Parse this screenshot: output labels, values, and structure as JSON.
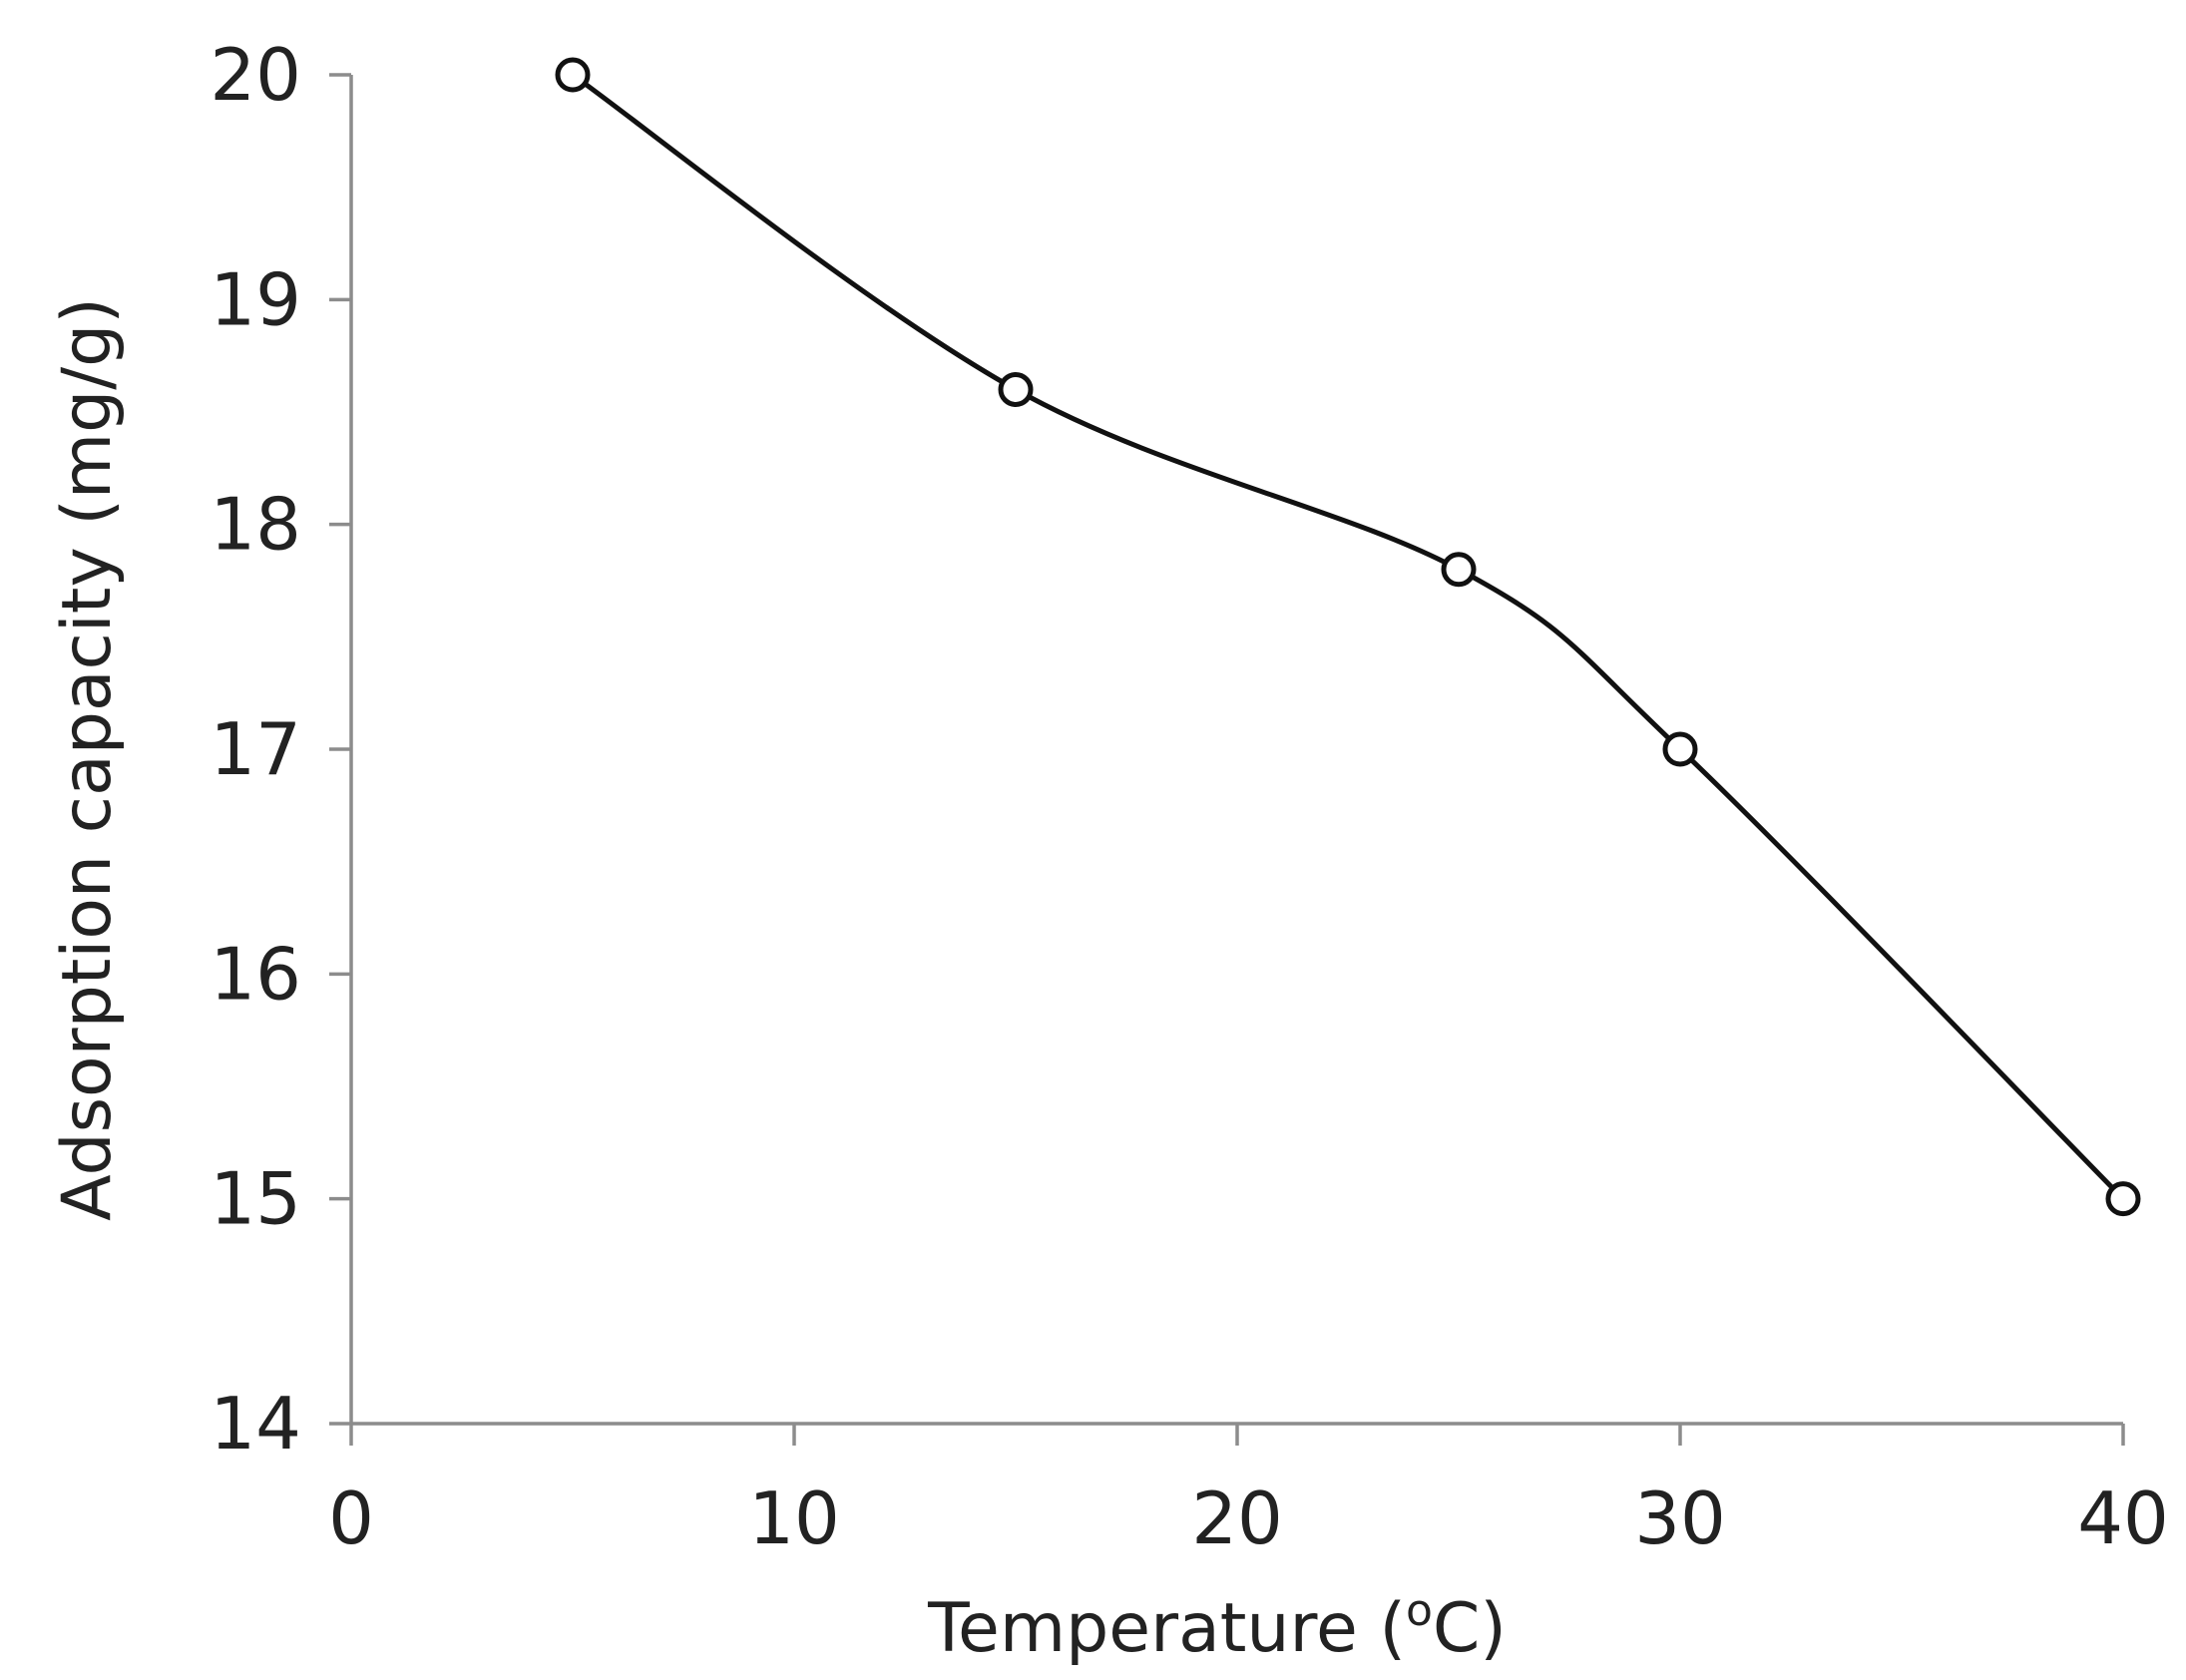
{
  "chart_data": {
    "type": "line",
    "smooth": true,
    "marker": "open-circle",
    "grid": false,
    "xlabel": "Temperature (",
    "xlabel_sup": "o",
    "xlabel_end": "C)",
    "ylabel": "Adsorption capacity (mg/g)",
    "xlim": [
      0,
      40
    ],
    "ylim": [
      14,
      20
    ],
    "xticks": [
      "0",
      "10",
      "20",
      "30",
      "40"
    ],
    "yticks": [
      "14",
      "15",
      "16",
      "17",
      "18",
      "19",
      "20"
    ],
    "line_color": "#111111",
    "axis_color": "#8c8c8c",
    "series": [
      {
        "x": [
          5,
          15,
          25,
          30,
          40
        ],
        "y": [
          20.0,
          18.6,
          17.8,
          17.0,
          15.0
        ]
      }
    ]
  }
}
